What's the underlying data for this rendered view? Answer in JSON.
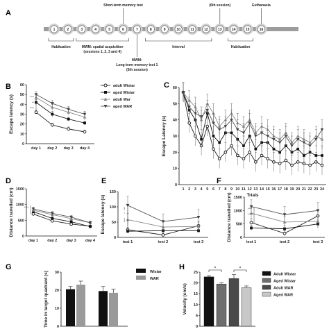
{
  "timeline": {
    "sessions": [
      "1",
      "2",
      "3",
      "4",
      "5",
      "6",
      "7",
      "8",
      "9",
      "10",
      "11",
      "12",
      "13",
      "14",
      "15",
      "16"
    ],
    "above": [
      {
        "text": "Short-term memory test",
        "at": 6
      },
      {
        "text": "(6th session)",
        "at": 13
      },
      {
        "text": "Euthanasia",
        "at": 16
      }
    ],
    "below": [
      {
        "lines": [
          "Habituation"
        ],
        "from": 1,
        "to": 2
      },
      {
        "lines": [
          "MWM: spatial acquisition",
          "(sessions 1, 2, 3 and 4)"
        ],
        "from": 3,
        "to": 6
      },
      {
        "lines": [
          "MWM:",
          "Long-term memory test 1",
          "(5th session)"
        ],
        "from": 7,
        "to": 7
      },
      {
        "lines": [
          "Interval"
        ],
        "from": 8,
        "to": 12
      },
      {
        "lines": [
          "Habituation"
        ],
        "from": 14,
        "to": 15
      }
    ]
  },
  "panel_labels": [
    "A",
    "B",
    "C",
    "D",
    "E",
    "F",
    "G",
    "H"
  ],
  "chart_data": [
    {
      "panel": "B",
      "type": "line",
      "categories": [
        "day 1",
        "day 2",
        "day 3",
        "day 4"
      ],
      "ylabel": "Escape latency (s)",
      "xlabel": "",
      "ylim": [
        0,
        60
      ],
      "yticks": [
        0,
        10,
        20,
        30,
        40,
        50,
        60
      ],
      "series": [
        {
          "name": "adult Wistar",
          "marker": "circle-open",
          "values": [
            32,
            19,
            15,
            12
          ],
          "err": [
            2,
            2,
            2,
            2
          ]
        },
        {
          "name": "aged Wistar",
          "marker": "square",
          "values": [
            42,
            30,
            25,
            21
          ],
          "err": [
            3,
            3,
            2,
            2
          ]
        },
        {
          "name": "adult War",
          "marker": "triangle",
          "values": [
            47,
            37,
            32,
            27
          ],
          "err": [
            3,
            3,
            3,
            3
          ]
        },
        {
          "name": "aged WAR",
          "marker": "triangle-down",
          "values": [
            50,
            41,
            35,
            30
          ],
          "err": [
            3,
            3,
            3,
            3
          ]
        }
      ],
      "annotations": [
        "****",
        "**",
        "****"
      ],
      "legend": "right"
    },
    {
      "panel": "C",
      "type": "line",
      "x": [
        1,
        2,
        3,
        4,
        5,
        6,
        7,
        8,
        9,
        10,
        11,
        12,
        13,
        14,
        15,
        16,
        17,
        18,
        19,
        20,
        21,
        22,
        23,
        24
      ],
      "xlabel": "Trials",
      "ylabel": "Escape Latency (s)",
      "ylim": [
        0,
        60
      ],
      "yticks": [
        0,
        10,
        20,
        30,
        40,
        50,
        60
      ],
      "series": [
        {
          "name": "adult Wistar",
          "marker": "circle-open",
          "values": [
            57,
            38,
            30,
            24,
            36,
            22,
            16,
            20,
            24,
            18,
            16,
            20,
            14,
            18,
            16,
            14,
            13,
            15,
            12,
            14,
            13,
            12,
            14,
            12
          ]
        },
        {
          "name": "aged Wistar",
          "marker": "square",
          "values": [
            57,
            46,
            40,
            28,
            44,
            30,
            26,
            32,
            32,
            28,
            24,
            30,
            22,
            26,
            26,
            22,
            20,
            24,
            20,
            22,
            18,
            20,
            18,
            18
          ]
        },
        {
          "name": "adult War",
          "marker": "triangle",
          "values": [
            57,
            52,
            48,
            40,
            50,
            44,
            36,
            40,
            44,
            38,
            36,
            40,
            32,
            36,
            34,
            30,
            28,
            32,
            26,
            30,
            28,
            26,
            30,
            28
          ]
        },
        {
          "name": "aged WAR",
          "marker": "triangle-down",
          "values": [
            57,
            48,
            44,
            42,
            46,
            38,
            34,
            36,
            40,
            34,
            32,
            38,
            30,
            32,
            30,
            28,
            26,
            30,
            24,
            28,
            26,
            24,
            28,
            34
          ]
        }
      ],
      "err": 6
    },
    {
      "panel": "D",
      "type": "line",
      "categories": [
        "day 1",
        "day 2",
        "day 3",
        "day 4"
      ],
      "ylabel": "Distance travelled (cm)",
      "xlabel": "",
      "ylim": [
        0,
        1500
      ],
      "yticks": [
        0,
        500,
        1000,
        1500
      ],
      "series": [
        {
          "name": "adult Wistar",
          "marker": "circle-open",
          "values": [
            700,
            480,
            380,
            310
          ],
          "err": [
            50,
            40,
            40,
            40
          ]
        },
        {
          "name": "aged Wistar",
          "marker": "square",
          "values": [
            770,
            560,
            450,
            300
          ],
          "err": [
            60,
            50,
            50,
            40
          ]
        },
        {
          "name": "adult War",
          "marker": "triangle",
          "values": [
            820,
            680,
            550,
            420
          ],
          "err": [
            60,
            60,
            50,
            50
          ]
        },
        {
          "name": "aged WAR",
          "marker": "triangle-down",
          "values": [
            860,
            720,
            600,
            420
          ],
          "err": [
            60,
            60,
            50,
            50
          ]
        }
      ],
      "annotations": [
        "****"
      ]
    },
    {
      "panel": "E",
      "type": "line",
      "categories": [
        "test 1",
        "test 2",
        "test 3"
      ],
      "ylabel": "Escape latency (s)",
      "xlabel": "",
      "ylim": [
        0,
        150
      ],
      "yticks": [
        0,
        50,
        100,
        150
      ],
      "series": [
        {
          "name": "adult Wistar",
          "marker": "circle-open",
          "values": [
            25,
            8,
            38
          ],
          "err": [
            8,
            6,
            12
          ]
        },
        {
          "name": "aged Wistar",
          "marker": "square",
          "values": [
            20,
            22,
            22
          ],
          "err": [
            6,
            8,
            8
          ]
        },
        {
          "name": "adult War",
          "marker": "triangle",
          "values": [
            58,
            34,
            36
          ],
          "err": [
            20,
            18,
            18
          ]
        },
        {
          "name": "aged WAR",
          "marker": "triangle-down",
          "values": [
            105,
            52,
            66
          ],
          "err": [
            30,
            25,
            25
          ]
        }
      ],
      "annotations": [
        "***",
        "*",
        "****"
      ]
    },
    {
      "panel": "F",
      "type": "line",
      "categories": [
        "test 1",
        "test 2",
        "test 3"
      ],
      "ylabel": "Distance travelled (cm)",
      "xlabel": "",
      "ylim": [
        0,
        1500
      ],
      "yticks": [
        0,
        500,
        1000,
        1500
      ],
      "series": [
        {
          "name": "adult Wistar",
          "marker": "circle-open",
          "values": [
            550,
            150,
            800
          ],
          "err": [
            150,
            100,
            200
          ]
        },
        {
          "name": "aged Wistar",
          "marker": "square",
          "values": [
            350,
            320,
            500
          ],
          "err": [
            100,
            120,
            150
          ]
        },
        {
          "name": "adult War",
          "marker": "triangle",
          "values": [
            900,
            570,
            600
          ],
          "err": [
            200,
            220,
            250
          ]
        },
        {
          "name": "aged WAR",
          "marker": "triangle-down",
          "values": [
            1150,
            850,
            1000
          ],
          "err": [
            250,
            300,
            300
          ]
        }
      ],
      "annotations": [
        "****",
        "****"
      ]
    },
    {
      "panel": "G",
      "type": "bar",
      "categories": [
        "adult",
        "aged"
      ],
      "ylabel": "Time in target quadrant (s)",
      "xlabel": "",
      "ylim": [
        0,
        30
      ],
      "yticks": [
        0,
        10,
        20,
        30
      ],
      "series": [
        {
          "name": "Wistar",
          "color": "#111111",
          "values": [
            20.5,
            19.5
          ],
          "err": [
            1.5,
            2.5
          ]
        },
        {
          "name": "WAR",
          "color": "#9a9a9a",
          "values": [
            23,
            18.5
          ],
          "err": [
            2,
            2
          ]
        }
      ],
      "legend": "right"
    },
    {
      "panel": "H",
      "type": "bar",
      "categories": [
        "Adult Wistar",
        "Aged Wistar",
        "Adult WAR",
        "Aged WAR"
      ],
      "ylabel": "Velocity (cm/s)",
      "xlabel": "",
      "ylim": [
        0,
        25
      ],
      "yticks": [
        0,
        5,
        10,
        15,
        20,
        25
      ],
      "values": [
        22.8,
        19.5,
        22,
        17.8
      ],
      "err": [
        0.5,
        0.5,
        1.8,
        0.8
      ],
      "colors": [
        "#111111",
        "#6e6e6e",
        "#4a4a4a",
        "#c8c8c8"
      ],
      "legend": "right",
      "annotations": [
        "*",
        "*"
      ]
    }
  ]
}
